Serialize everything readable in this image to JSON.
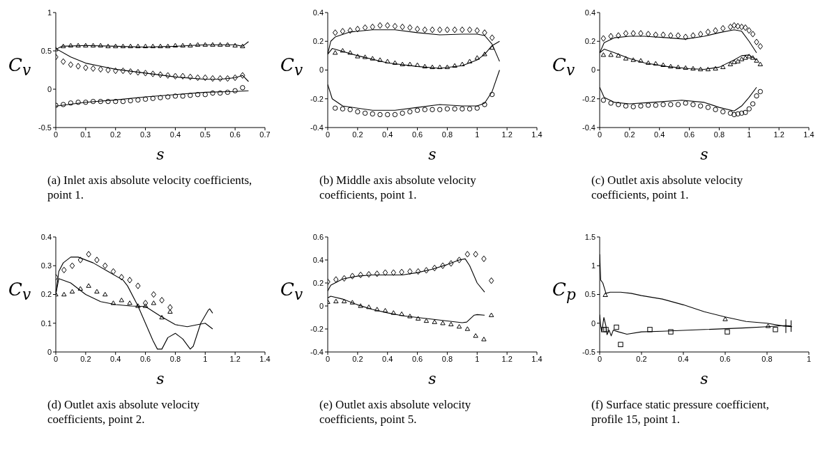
{
  "chart_data": [
    {
      "type": "line",
      "xlabel": "s",
      "ylabel": "C$_{v}$",
      "annotations": [
        "(a) Inlet axis absolute velocity coefficients, point 1."
      ],
      "xlim": [
        0,
        0.7
      ],
      "xticks": [
        0,
        0.1,
        0.2,
        0.3,
        0.4,
        0.5,
        0.6,
        0.7
      ],
      "ylim": [
        -0.5,
        1
      ],
      "yticks": [
        -0.5,
        0,
        0.5,
        1
      ],
      "series": [
        {
          "type": "line",
          "color": "#000000",
          "x": [
            0,
            0.02,
            0.1,
            0.2,
            0.3,
            0.4,
            0.5,
            0.6,
            0.625,
            0.645
          ],
          "values": [
            0.52,
            0.56,
            0.57,
            0.56,
            0.55,
            0.56,
            0.58,
            0.58,
            0.56,
            0.62
          ]
        },
        {
          "type": "line",
          "color": "#000000",
          "x": [
            0,
            0.05,
            0.1,
            0.15,
            0.2,
            0.3,
            0.4,
            0.5,
            0.55,
            0.6,
            0.625,
            0.645
          ],
          "values": [
            0.53,
            0.42,
            0.34,
            0.3,
            0.26,
            0.21,
            0.16,
            0.13,
            0.13,
            0.15,
            0.18,
            0.1
          ]
        },
        {
          "type": "line",
          "color": "#000000",
          "x": [
            0,
            0.1,
            0.2,
            0.3,
            0.4,
            0.5,
            0.6,
            0.645
          ],
          "values": [
            -0.22,
            -0.17,
            -0.14,
            -0.1,
            -0.07,
            -0.04,
            -0.03,
            -0.02
          ]
        },
        {
          "type": "scatter",
          "marker": "triangle",
          "color": "#000000",
          "x": [
            0,
            0.025,
            0.05,
            0.075,
            0.1,
            0.125,
            0.15,
            0.175,
            0.2,
            0.225,
            0.25,
            0.275,
            0.3,
            0.325,
            0.35,
            0.375,
            0.4,
            0.425,
            0.45,
            0.475,
            0.5,
            0.525,
            0.55,
            0.575,
            0.6,
            0.625
          ],
          "values": [
            0.52,
            0.56,
            0.57,
            0.57,
            0.57,
            0.57,
            0.57,
            0.56,
            0.56,
            0.56,
            0.56,
            0.56,
            0.56,
            0.56,
            0.56,
            0.56,
            0.57,
            0.57,
            0.57,
            0.58,
            0.58,
            0.58,
            0.58,
            0.58,
            0.57,
            0.56
          ]
        },
        {
          "type": "scatter",
          "marker": "diamond",
          "color": "#000000",
          "x": [
            0,
            0.025,
            0.05,
            0.075,
            0.1,
            0.125,
            0.15,
            0.175,
            0.2,
            0.225,
            0.25,
            0.275,
            0.3,
            0.325,
            0.35,
            0.375,
            0.4,
            0.425,
            0.45,
            0.475,
            0.5,
            0.525,
            0.55,
            0.575,
            0.6,
            0.625
          ],
          "values": [
            0.42,
            0.36,
            0.32,
            0.3,
            0.28,
            0.27,
            0.26,
            0.25,
            0.24,
            0.24,
            0.23,
            0.22,
            0.21,
            0.2,
            0.19,
            0.18,
            0.17,
            0.17,
            0.16,
            0.15,
            0.15,
            0.14,
            0.14,
            0.14,
            0.15,
            0.18
          ]
        },
        {
          "type": "scatter",
          "marker": "circle",
          "color": "#000000",
          "x": [
            0,
            0.025,
            0.05,
            0.075,
            0.1,
            0.125,
            0.15,
            0.175,
            0.2,
            0.225,
            0.25,
            0.275,
            0.3,
            0.325,
            0.35,
            0.375,
            0.4,
            0.425,
            0.45,
            0.475,
            0.5,
            0.525,
            0.55,
            0.575,
            0.6,
            0.625
          ],
          "values": [
            -0.21,
            -0.2,
            -0.18,
            -0.17,
            -0.17,
            -0.16,
            -0.16,
            -0.16,
            -0.16,
            -0.16,
            -0.15,
            -0.14,
            -0.13,
            -0.12,
            -0.11,
            -0.1,
            -0.09,
            -0.09,
            -0.08,
            -0.07,
            -0.07,
            -0.05,
            -0.05,
            -0.04,
            -0.02,
            0.02
          ]
        }
      ]
    },
    {
      "type": "line",
      "xlabel": "s",
      "ylabel": "C$_{v}$",
      "annotations": [
        "(b) Middle axis absolute velocity coefficients, point 1."
      ],
      "xlim": [
        0,
        1.4
      ],
      "xticks": [
        0,
        0.2,
        0.4,
        0.6,
        0.8,
        1,
        1.2,
        1.4
      ],
      "ylim": [
        -0.4,
        0.4
      ],
      "yticks": [
        -0.4,
        -0.2,
        0,
        0.2,
        0.4
      ],
      "series": [
        {
          "type": "line",
          "color": "#000000",
          "x": [
            0,
            0.02,
            0.05,
            0.15,
            0.3,
            0.45,
            0.6,
            0.75,
            0.9,
            1,
            1.05,
            1.1,
            1.15
          ],
          "values": [
            0.11,
            0.2,
            0.23,
            0.265,
            0.28,
            0.28,
            0.26,
            0.245,
            0.25,
            0.25,
            0.24,
            0.18,
            0.06
          ]
        },
        {
          "type": "line",
          "color": "#000000",
          "x": [
            0,
            0.03,
            0.2,
            0.4,
            0.6,
            0.75,
            0.9,
            1,
            1.05,
            1.1,
            1.15
          ],
          "values": [
            0.11,
            0.15,
            0.1,
            0.05,
            0.025,
            0.012,
            0.03,
            0.07,
            0.11,
            0.17,
            0.2
          ]
        },
        {
          "type": "line",
          "color": "#000000",
          "x": [
            0,
            0.03,
            0.1,
            0.3,
            0.45,
            0.6,
            0.75,
            0.9,
            1,
            1.05,
            1.1,
            1.15
          ],
          "values": [
            -0.1,
            -0.2,
            -0.25,
            -0.28,
            -0.28,
            -0.26,
            -0.24,
            -0.25,
            -0.25,
            -0.23,
            -0.15,
            0
          ]
        },
        {
          "type": "scatter",
          "marker": "diamond",
          "color": "#000000",
          "x": [
            0.05,
            0.1,
            0.15,
            0.2,
            0.25,
            0.3,
            0.35,
            0.4,
            0.45,
            0.5,
            0.55,
            0.6,
            0.65,
            0.7,
            0.75,
            0.8,
            0.85,
            0.9,
            0.95,
            1,
            1.05,
            1.1
          ],
          "values": [
            0.26,
            0.27,
            0.275,
            0.285,
            0.295,
            0.3,
            0.31,
            0.31,
            0.305,
            0.3,
            0.295,
            0.285,
            0.28,
            0.28,
            0.28,
            0.28,
            0.28,
            0.28,
            0.28,
            0.275,
            0.26,
            0.225
          ]
        },
        {
          "type": "scatter",
          "marker": "triangle",
          "color": "#000000",
          "x": [
            0.05,
            0.1,
            0.15,
            0.2,
            0.25,
            0.3,
            0.35,
            0.4,
            0.45,
            0.5,
            0.55,
            0.6,
            0.65,
            0.7,
            0.75,
            0.8,
            0.85,
            0.9,
            0.95,
            1,
            1.05,
            1.1
          ],
          "values": [
            0.12,
            0.135,
            0.12,
            0.095,
            0.09,
            0.08,
            0.07,
            0.06,
            0.05,
            0.04,
            0.04,
            0.035,
            0.025,
            0.02,
            0.02,
            0.02,
            0.03,
            0.04,
            0.06,
            0.085,
            0.11,
            0.155
          ]
        },
        {
          "type": "scatter",
          "marker": "circle",
          "color": "#000000",
          "x": [
            0.05,
            0.1,
            0.15,
            0.2,
            0.25,
            0.3,
            0.35,
            0.4,
            0.45,
            0.5,
            0.55,
            0.6,
            0.65,
            0.7,
            0.75,
            0.8,
            0.85,
            0.9,
            0.95,
            1,
            1.05,
            1.1
          ],
          "values": [
            -0.265,
            -0.27,
            -0.275,
            -0.29,
            -0.3,
            -0.305,
            -0.31,
            -0.31,
            -0.31,
            -0.3,
            -0.29,
            -0.28,
            -0.275,
            -0.275,
            -0.275,
            -0.27,
            -0.27,
            -0.27,
            -0.27,
            -0.265,
            -0.24,
            -0.17
          ]
        }
      ]
    },
    {
      "type": "line",
      "xlabel": "s",
      "ylabel": "C$_{v}$",
      "annotations": [
        "(c) Outlet axis absolute velocity coefficients, point 1."
      ],
      "xlim": [
        0,
        1.4
      ],
      "xticks": [
        0,
        0.2,
        0.4,
        0.6,
        0.8,
        1,
        1.2,
        1.4
      ],
      "ylim": [
        -0.4,
        0.4
      ],
      "yticks": [
        -0.4,
        -0.2,
        0,
        0.2,
        0.4
      ],
      "series": [
        {
          "type": "line",
          "color": "#000000",
          "x": [
            0,
            0.03,
            0.1,
            0.2,
            0.3,
            0.45,
            0.57,
            0.7,
            0.8,
            0.9,
            0.95,
            1,
            1.05
          ],
          "values": [
            0.12,
            0.19,
            0.225,
            0.235,
            0.235,
            0.225,
            0.215,
            0.235,
            0.26,
            0.28,
            0.27,
            0.2,
            0.12
          ]
        },
        {
          "type": "line",
          "color": "#000000",
          "x": [
            0,
            0.03,
            0.1,
            0.2,
            0.3,
            0.45,
            0.6,
            0.7,
            0.8,
            0.9,
            0.95,
            1,
            1.05
          ],
          "values": [
            0.12,
            0.145,
            0.12,
            0.08,
            0.05,
            0.025,
            0.01,
            0.005,
            0.02,
            0.07,
            0.1,
            0.105,
            0.07
          ]
        },
        {
          "type": "line",
          "color": "#000000",
          "x": [
            0,
            0.03,
            0.1,
            0.2,
            0.35,
            0.55,
            0.7,
            0.8,
            0.9,
            0.95,
            1,
            1.05
          ],
          "values": [
            -0.12,
            -0.19,
            -0.225,
            -0.235,
            -0.225,
            -0.21,
            -0.225,
            -0.26,
            -0.285,
            -0.25,
            -0.19,
            -0.12
          ]
        },
        {
          "type": "scatter",
          "marker": "diamond",
          "color": "#000000",
          "x": [
            0.025,
            0.075,
            0.125,
            0.175,
            0.225,
            0.275,
            0.325,
            0.375,
            0.425,
            0.475,
            0.525,
            0.575,
            0.625,
            0.675,
            0.725,
            0.775,
            0.825,
            0.875,
            0.9,
            0.925,
            0.95,
            0.975,
            1,
            1.025,
            1.05,
            1.075
          ],
          "values": [
            0.22,
            0.235,
            0.24,
            0.255,
            0.255,
            0.255,
            0.25,
            0.245,
            0.245,
            0.24,
            0.24,
            0.23,
            0.24,
            0.25,
            0.265,
            0.275,
            0.29,
            0.3,
            0.31,
            0.305,
            0.3,
            0.295,
            0.275,
            0.25,
            0.195,
            0.165
          ]
        },
        {
          "type": "scatter",
          "marker": "triangle",
          "color": "#000000",
          "x": [
            0.025,
            0.075,
            0.125,
            0.175,
            0.225,
            0.275,
            0.325,
            0.375,
            0.425,
            0.475,
            0.525,
            0.575,
            0.625,
            0.675,
            0.725,
            0.775,
            0.825,
            0.875,
            0.9,
            0.925,
            0.95,
            0.975,
            1,
            1.025,
            1.05,
            1.075
          ],
          "values": [
            0.105,
            0.105,
            0.1,
            0.08,
            0.07,
            0.065,
            0.05,
            0.045,
            0.035,
            0.025,
            0.02,
            0.015,
            0.01,
            0.005,
            0.005,
            0.01,
            0.02,
            0.04,
            0.055,
            0.06,
            0.075,
            0.085,
            0.095,
            0.085,
            0.065,
            0.04
          ]
        },
        {
          "type": "scatter",
          "marker": "circle",
          "color": "#000000",
          "x": [
            0.025,
            0.075,
            0.125,
            0.175,
            0.225,
            0.275,
            0.325,
            0.375,
            0.425,
            0.475,
            0.525,
            0.575,
            0.625,
            0.675,
            0.725,
            0.775,
            0.825,
            0.875,
            0.9,
            0.925,
            0.95,
            0.975,
            1,
            1.025,
            1.05,
            1.075
          ],
          "values": [
            -0.21,
            -0.23,
            -0.24,
            -0.25,
            -0.255,
            -0.25,
            -0.245,
            -0.245,
            -0.24,
            -0.24,
            -0.24,
            -0.23,
            -0.24,
            -0.25,
            -0.26,
            -0.275,
            -0.29,
            -0.3,
            -0.31,
            -0.305,
            -0.3,
            -0.295,
            -0.27,
            -0.235,
            -0.18,
            -0.15
          ]
        }
      ]
    },
    {
      "type": "line",
      "xlabel": "s",
      "ylabel": "C$_{v}$",
      "annotations": [
        "(d) Outlet axis absolute velocity coefficients, point 2."
      ],
      "xlim": [
        0,
        1.4
      ],
      "xticks": [
        0,
        0.2,
        0.4,
        0.6,
        0.8,
        1,
        1.2,
        1.4
      ],
      "ylim": [
        0,
        0.4
      ],
      "yticks": [
        0,
        0.1,
        0.2,
        0.3,
        0.4
      ],
      "series": [
        {
          "type": "line",
          "color": "#000000",
          "x": [
            0,
            0.02,
            0.05,
            0.1,
            0.15,
            0.25,
            0.35,
            0.45,
            0.48,
            0.55,
            0.6,
            0.65,
            0.68,
            0.71,
            0.75,
            0.8,
            0.85,
            0.9,
            0.92,
            0.97,
            1.02,
            1.03,
            1.05
          ],
          "values": [
            0.2,
            0.28,
            0.31,
            0.33,
            0.33,
            0.31,
            0.28,
            0.25,
            0.23,
            0.16,
            0.1,
            0.04,
            0.01,
            0.01,
            0.05,
            0.065,
            0.045,
            0.01,
            0.02,
            0.1,
            0.145,
            0.15,
            0.135
          ]
        },
        {
          "type": "line",
          "color": "#000000",
          "x": [
            0,
            0.02,
            0.1,
            0.2,
            0.3,
            0.4,
            0.5,
            0.6,
            0.7,
            0.8,
            0.88,
            0.95,
            1,
            1.05
          ],
          "values": [
            0.2,
            0.255,
            0.24,
            0.2,
            0.175,
            0.165,
            0.16,
            0.158,
            0.125,
            0.095,
            0.088,
            0.095,
            0.1,
            0.08
          ]
        },
        {
          "type": "scatter",
          "marker": "diamond",
          "color": "#000000",
          "x": [
            0,
            0.055,
            0.11,
            0.165,
            0.22,
            0.275,
            0.33,
            0.385,
            0.44,
            0.495,
            0.55,
            0.6,
            0.655,
            0.71,
            0.765
          ],
          "values": [
            0.26,
            0.285,
            0.3,
            0.32,
            0.34,
            0.32,
            0.3,
            0.28,
            0.26,
            0.25,
            0.23,
            0.17,
            0.2,
            0.18,
            0.155
          ]
        },
        {
          "type": "scatter",
          "marker": "triangle",
          "color": "#000000",
          "x": [
            0,
            0.055,
            0.11,
            0.165,
            0.22,
            0.275,
            0.33,
            0.385,
            0.44,
            0.495,
            0.55,
            0.6,
            0.655,
            0.71,
            0.765
          ],
          "values": [
            0.2,
            0.2,
            0.21,
            0.22,
            0.23,
            0.21,
            0.2,
            0.17,
            0.18,
            0.17,
            0.16,
            0.16,
            0.17,
            0.12,
            0.14
          ]
        }
      ]
    },
    {
      "type": "line",
      "xlabel": "s",
      "ylabel": "C$_{v}$",
      "annotations": [
        "(e) Outlet axis absolute velocity coefficients, point 5."
      ],
      "xlim": [
        0,
        1.4
      ],
      "xticks": [
        0,
        0.2,
        0.4,
        0.6,
        0.8,
        1,
        1.2,
        1.4
      ],
      "ylim": [
        -0.4,
        0.6
      ],
      "yticks": [
        -0.4,
        -0.2,
        0,
        0.2,
        0.4,
        0.6
      ],
      "series": [
        {
          "type": "line",
          "color": "#000000",
          "x": [
            0,
            0.02,
            0.1,
            0.2,
            0.3,
            0.5,
            0.6,
            0.7,
            0.8,
            0.88,
            0.92,
            0.95,
            1,
            1.05
          ],
          "values": [
            0.13,
            0.18,
            0.235,
            0.26,
            0.27,
            0.27,
            0.29,
            0.32,
            0.36,
            0.4,
            0.41,
            0.35,
            0.2,
            0.12
          ]
        },
        {
          "type": "line",
          "color": "#000000",
          "x": [
            0,
            0.02,
            0.1,
            0.2,
            0.3,
            0.4,
            0.5,
            0.6,
            0.7,
            0.8,
            0.9,
            0.93,
            0.98,
            1,
            1.05
          ],
          "values": [
            0.07,
            0.085,
            0.06,
            0.01,
            -0.03,
            -0.06,
            -0.085,
            -0.1,
            -0.115,
            -0.13,
            -0.145,
            -0.14,
            -0.08,
            -0.075,
            -0.08
          ]
        },
        {
          "type": "scatter",
          "marker": "diamond",
          "color": "#000000",
          "x": [
            0,
            0.055,
            0.11,
            0.165,
            0.22,
            0.275,
            0.33,
            0.385,
            0.44,
            0.495,
            0.55,
            0.605,
            0.66,
            0.715,
            0.77,
            0.825,
            0.88,
            0.935,
            0.99,
            1.045,
            1.095
          ],
          "values": [
            0.21,
            0.23,
            0.24,
            0.26,
            0.27,
            0.275,
            0.28,
            0.29,
            0.29,
            0.295,
            0.3,
            0.3,
            0.31,
            0.33,
            0.35,
            0.37,
            0.4,
            0.45,
            0.45,
            0.41,
            0.22
          ]
        },
        {
          "type": "scatter",
          "marker": "triangle",
          "color": "#000000",
          "x": [
            0,
            0.055,
            0.11,
            0.165,
            0.22,
            0.275,
            0.33,
            0.385,
            0.44,
            0.495,
            0.55,
            0.605,
            0.66,
            0.715,
            0.77,
            0.825,
            0.88,
            0.935,
            0.99,
            1.045,
            1.095
          ],
          "values": [
            0.035,
            0.04,
            0.04,
            0.03,
            0,
            -0.01,
            -0.03,
            -0.04,
            -0.06,
            -0.07,
            -0.09,
            -0.11,
            -0.13,
            -0.14,
            -0.15,
            -0.16,
            -0.18,
            -0.2,
            -0.26,
            -0.29,
            -0.08
          ]
        }
      ]
    },
    {
      "type": "line",
      "xlabel": "s",
      "ylabel": "C$_{p}$",
      "annotations": [
        "(f) Surface static pressure coefficient, profile 15, point 1."
      ],
      "xlim": [
        0,
        1
      ],
      "xticks": [
        0,
        0.2,
        0.4,
        0.6,
        0.8,
        1
      ],
      "ylim": [
        -0.5,
        1.5
      ],
      "yticks": [
        -0.5,
        0,
        0.5,
        1,
        1.5
      ],
      "series": [
        {
          "type": "line",
          "color": "#000000",
          "x": [
            0,
            0.005,
            0.015,
            0.03,
            0.05,
            0.1,
            0.15,
            0.2,
            0.3,
            0.4,
            0.5,
            0.6,
            0.7,
            0.8,
            0.88,
            0.92
          ],
          "values": [
            1.2,
            0.75,
            0.7,
            0.52,
            0.54,
            0.54,
            0.52,
            0.48,
            0.42,
            0.32,
            0.2,
            0.11,
            0.03,
            0,
            -0.05,
            -0.06
          ]
        },
        {
          "type": "line",
          "color": "#000000",
          "x": [
            0,
            0.005,
            0.01,
            0.02,
            0.03,
            0.035,
            0.045,
            0.055,
            0.065,
            0.09,
            0.13,
            0.2,
            0.3,
            0.5,
            0.7,
            0.8,
            0.89,
            0.915
          ],
          "values": [
            0.15,
            -0.05,
            -0.15,
            0.1,
            -0.05,
            -0.2,
            -0.12,
            -0.22,
            -0.12,
            -0.15,
            -0.19,
            -0.15,
            -0.14,
            -0.11,
            -0.08,
            -0.06,
            -0.04,
            -0.05
          ]
        },
        {
          "type": "line",
          "color": "#000000",
          "x": [
            0.89,
            0.89
          ],
          "values": [
            -0.17,
            0.07
          ]
        },
        {
          "type": "line",
          "color": "#000000",
          "x": [
            0.915,
            0.915
          ],
          "values": [
            -0.15,
            0.05
          ]
        },
        {
          "type": "scatter",
          "marker": "triangle",
          "color": "#000000",
          "x": [
            0.027,
            0.6,
            0.805
          ],
          "values": [
            0.49,
            0.07,
            -0.05
          ]
        },
        {
          "type": "scatter",
          "marker": "square",
          "color": "#000000",
          "x": [
            0.02,
            0.03,
            0.08,
            0.1,
            0.24,
            0.34,
            0.61,
            0.84
          ],
          "values": [
            -0.11,
            -0.11,
            -0.07,
            -0.37,
            -0.11,
            -0.15,
            -0.15,
            -0.11
          ]
        }
      ]
    }
  ]
}
